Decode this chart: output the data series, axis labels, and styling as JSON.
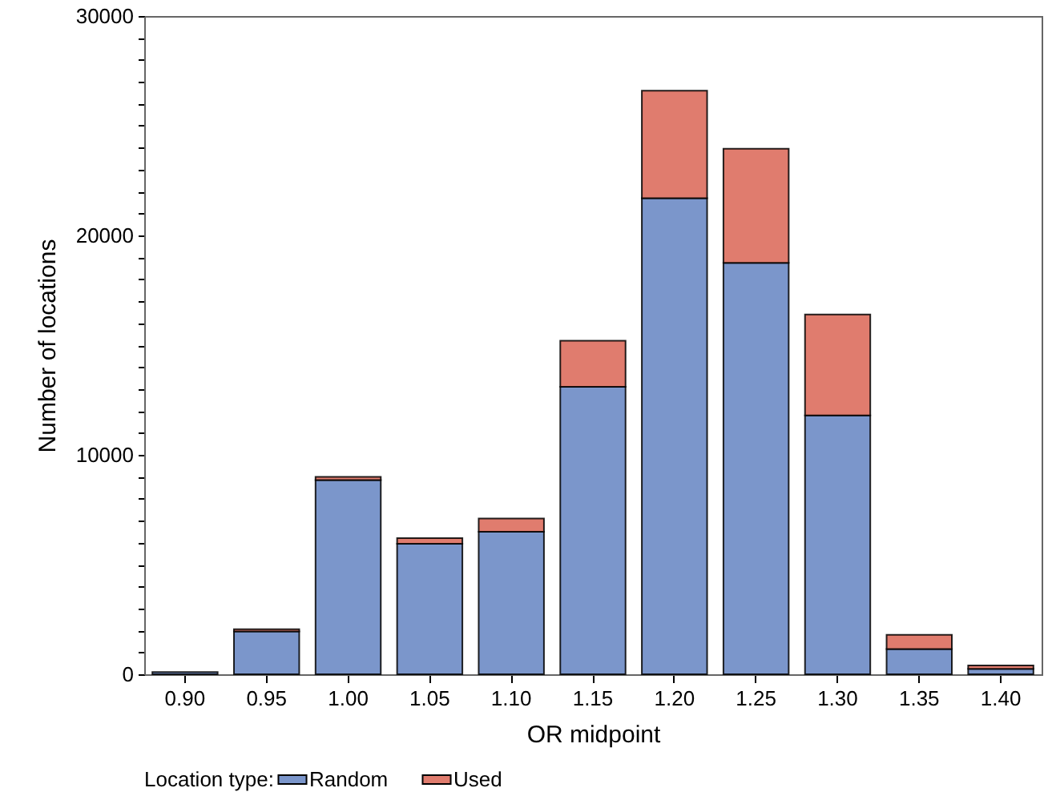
{
  "chart_data": {
    "type": "bar",
    "stacked": true,
    "xlabel": "OR midpoint",
    "ylabel": "Number of locations",
    "legend_title": "Location type:",
    "legend": "bottom",
    "categories": [
      "0.90",
      "0.95",
      "1.00",
      "1.05",
      "1.10",
      "1.15",
      "1.20",
      "1.25",
      "1.30",
      "1.35",
      "1.40"
    ],
    "series": [
      {
        "name": "Random",
        "color": "#7b96cb",
        "values": [
          100,
          1950,
          8850,
          5950,
          6500,
          13100,
          21700,
          18750,
          11800,
          1150,
          250
        ]
      },
      {
        "name": "Used",
        "color": "#e07c6e",
        "values": [
          null,
          100,
          150,
          250,
          600,
          2100,
          4900,
          5200,
          4600,
          650,
          150
        ]
      }
    ],
    "ylim": [
      0,
      30000
    ],
    "yticks": [
      0,
      {
        "value": 1000,
        "label": null
      },
      {
        "value": 2000,
        "label": null
      },
      {
        "value": 3000,
        "label": null
      },
      {
        "value": 4000,
        "label": null
      },
      {
        "value": 5000,
        "label": null
      },
      {
        "value": 6000,
        "label": null
      },
      {
        "value": 7000,
        "label": null
      },
      {
        "value": 8000,
        "label": null
      },
      {
        "value": 9000,
        "label": null
      },
      10000,
      {
        "value": 11000,
        "label": null
      },
      {
        "value": 12000,
        "label": null
      },
      {
        "value": 13000,
        "label": null
      },
      {
        "value": 14000,
        "label": null
      },
      {
        "value": 15000,
        "label": null
      },
      {
        "value": 16000,
        "label": null
      },
      {
        "value": 17000,
        "label": null
      },
      {
        "value": 18000,
        "label": null
      },
      {
        "value": 19000,
        "label": null
      },
      20000,
      {
        "value": 21000,
        "label": null
      },
      {
        "value": 22000,
        "label": null
      },
      {
        "value": 23000,
        "label": null
      },
      {
        "value": 24000,
        "label": null
      },
      {
        "value": 25000,
        "label": null
      },
      {
        "value": 26000,
        "label": null
      },
      {
        "value": 27000,
        "label": null
      },
      {
        "value": 28000,
        "label": null
      },
      {
        "value": 29000,
        "label": null
      },
      30000
    ],
    "grid": false
  }
}
